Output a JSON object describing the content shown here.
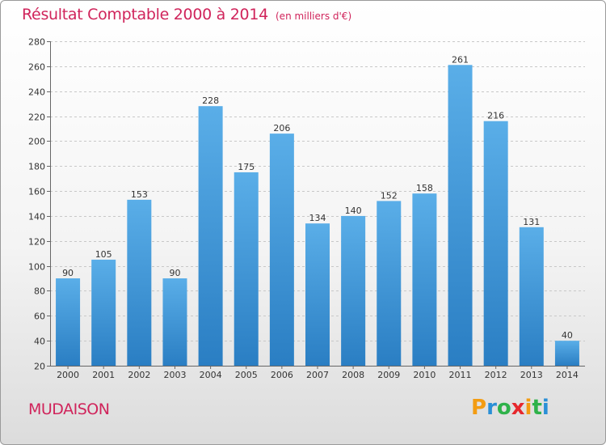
{
  "title": "Résultat Comptable 2000 à 2014",
  "subtitle": "(en milliers d'€)",
  "commune": "MUDAISON",
  "logo": {
    "text": "Proxiti",
    "letters": [
      "P",
      "r",
      "o",
      "x",
      "i",
      "t",
      "i"
    ],
    "colors": [
      "#f39c12",
      "#2a8fd6",
      "#2fb24a",
      "#e6282d",
      "#f39c12",
      "#2fb24a",
      "#2a8fd6"
    ]
  },
  "colors": {
    "accent": "#d0245b",
    "bar_top": "#5aaee8",
    "bar_bottom": "#2a7ec3",
    "grid": "#c8c8c8"
  },
  "chart_data": {
    "type": "bar",
    "categories": [
      "2000",
      "2001",
      "2002",
      "2003",
      "2004",
      "2005",
      "2006",
      "2007",
      "2008",
      "2009",
      "2010",
      "2011",
      "2012",
      "2013",
      "2014"
    ],
    "values": [
      90,
      105,
      153,
      90,
      228,
      175,
      206,
      134,
      140,
      152,
      158,
      261,
      216,
      131,
      40
    ],
    "ylim": [
      20,
      280
    ],
    "yticks": [
      20,
      40,
      60,
      80,
      100,
      120,
      140,
      160,
      180,
      200,
      220,
      240,
      260,
      280
    ],
    "grid": true,
    "legend": "none"
  }
}
